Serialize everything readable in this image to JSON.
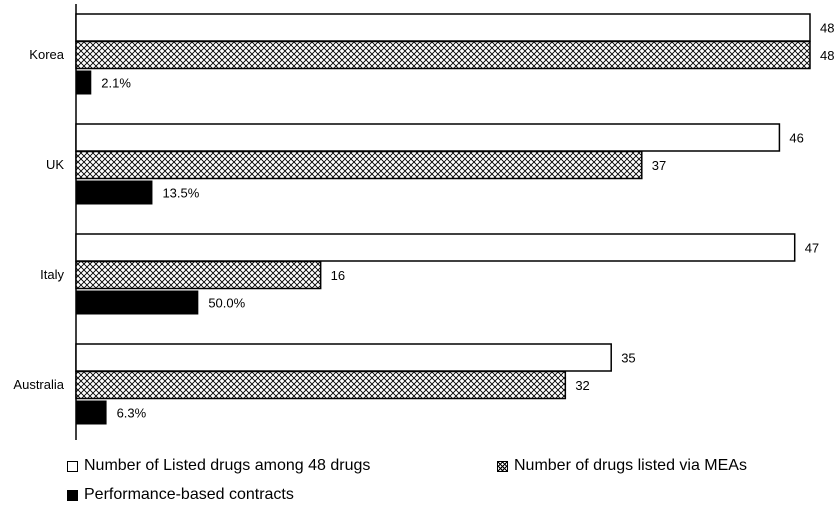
{
  "chart_data": {
    "type": "bar",
    "orientation": "horizontal",
    "categories": [
      "Korea",
      "UK",
      "Italy",
      "Australia"
    ],
    "series": [
      {
        "name": "Number of Listed drugs among 48 drugs",
        "values": [
          48,
          46,
          47,
          35
        ],
        "labels": [
          "48",
          "46",
          "47",
          "35"
        ],
        "style": "white"
      },
      {
        "name": "Number of drugs listed via MEAs",
        "values": [
          48,
          37,
          16,
          32
        ],
        "labels": [
          "48",
          "37",
          "16",
          "32"
        ],
        "style": "hatch"
      },
      {
        "name": "Performance-based contracts",
        "values": [
          1,
          5,
          8,
          2
        ],
        "labels": [
          "2.1%",
          "13.5%",
          "50.0%",
          "6.3%"
        ],
        "style": "black"
      }
    ],
    "xlim": [
      0,
      48
    ],
    "grid": false,
    "legend_position": "bottom"
  }
}
